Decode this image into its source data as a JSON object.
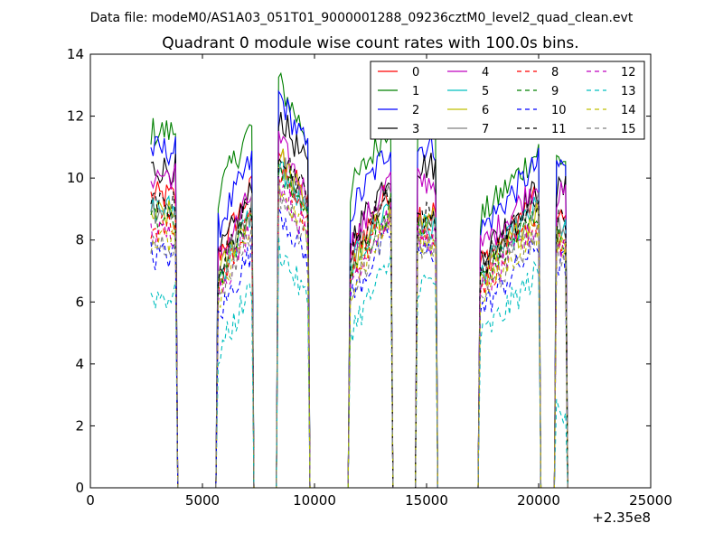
{
  "header": {
    "file_label": "Data file: modeM0/AS1A03_051T01_9000001288_09236cztM0_level2_quad_clean.evt"
  },
  "chart_data": {
    "type": "line",
    "title": "Quadrant 0 module wise count rates with 100.0s bins.",
    "xlabel": "",
    "ylabel": "",
    "x_offset_label": "+2.35e8",
    "xlim": [
      0,
      25000
    ],
    "ylim": [
      0,
      14
    ],
    "xticks": [
      0,
      5000,
      10000,
      15000,
      20000,
      25000
    ],
    "yticks": [
      0,
      2,
      4,
      6,
      8,
      10,
      12,
      14
    ],
    "grid": false,
    "legend_position": "top-right",
    "legend_columns": 4,
    "segments": [
      {
        "start": 2700,
        "end": 3800
      },
      {
        "start": 5700,
        "end": 7200
      },
      {
        "start": 8400,
        "end": 9700
      },
      {
        "start": 11600,
        "end": 13400
      },
      {
        "start": 14600,
        "end": 15400
      },
      {
        "start": 17400,
        "end": 20000
      },
      {
        "start": 20800,
        "end": 21200
      }
    ],
    "series": [
      {
        "name": "0",
        "color": "#ff0000",
        "dash": "solid",
        "levels": [
          9.4,
          8.6,
          10.0,
          8.6,
          8.9,
          8.3,
          8.6
        ]
      },
      {
        "name": "1",
        "color": "#008000",
        "dash": "solid",
        "levels": [
          11.5,
          10.6,
          12.2,
          10.7,
          11.6,
          9.8,
          10.6
        ]
      },
      {
        "name": "2",
        "color": "#0000ff",
        "dash": "solid",
        "levels": [
          10.9,
          9.5,
          11.8,
          10.0,
          11.0,
          9.4,
          10.4
        ]
      },
      {
        "name": "3",
        "color": "#000000",
        "dash": "solid",
        "levels": [
          10.3,
          8.5,
          11.2,
          9.1,
          10.4,
          8.6,
          9.6
        ]
      },
      {
        "name": "4",
        "color": "#bf00bf",
        "dash": "solid",
        "levels": [
          10.1,
          8.4,
          10.3,
          8.9,
          9.9,
          8.8,
          9.4
        ]
      },
      {
        "name": "5",
        "color": "#00bfbf",
        "dash": "solid",
        "levels": [
          9.0,
          7.8,
          9.6,
          8.2,
          8.4,
          8.0,
          8.2
        ]
      },
      {
        "name": "6",
        "color": "#bfbf00",
        "dash": "solid",
        "levels": [
          8.8,
          7.9,
          9.9,
          8.1,
          8.6,
          7.9,
          8.1
        ]
      },
      {
        "name": "7",
        "color": "#808080",
        "dash": "solid",
        "levels": [
          9.0,
          8.0,
          9.8,
          8.4,
          8.7,
          8.1,
          8.3
        ]
      },
      {
        "name": "8",
        "color": "#ff0000",
        "dash": "dashed",
        "levels": [
          8.4,
          7.6,
          9.4,
          7.9,
          8.2,
          7.6,
          7.9
        ]
      },
      {
        "name": "9",
        "color": "#008000",
        "dash": "dashed",
        "levels": [
          8.6,
          7.8,
          9.6,
          8.0,
          8.4,
          7.8,
          8.0
        ]
      },
      {
        "name": "10",
        "color": "#0000ff",
        "dash": "dashed",
        "levels": [
          7.5,
          6.6,
          8.2,
          7.2,
          7.6,
          6.8,
          7.2
        ]
      },
      {
        "name": "11",
        "color": "#000000",
        "dash": "dashed",
        "levels": [
          9.1,
          8.1,
          10.2,
          8.6,
          8.8,
          8.2,
          8.6
        ]
      },
      {
        "name": "12",
        "color": "#bf00bf",
        "dash": "dashed",
        "levels": [
          8.2,
          7.4,
          9.0,
          7.8,
          8.0,
          7.4,
          7.8
        ]
      },
      {
        "name": "13",
        "color": "#00bfbf",
        "dash": "dashed",
        "levels": [
          6.2,
          5.4,
          6.9,
          6.2,
          6.6,
          5.9,
          2.6
        ]
      },
      {
        "name": "14",
        "color": "#bfbf00",
        "dash": "dashed",
        "levels": [
          8.0,
          7.2,
          8.8,
          7.6,
          7.9,
          7.3,
          7.6
        ]
      },
      {
        "name": "15",
        "color": "#808080",
        "dash": "dashed",
        "levels": [
          7.9,
          7.3,
          8.7,
          7.5,
          7.8,
          7.2,
          7.5
        ]
      }
    ]
  }
}
